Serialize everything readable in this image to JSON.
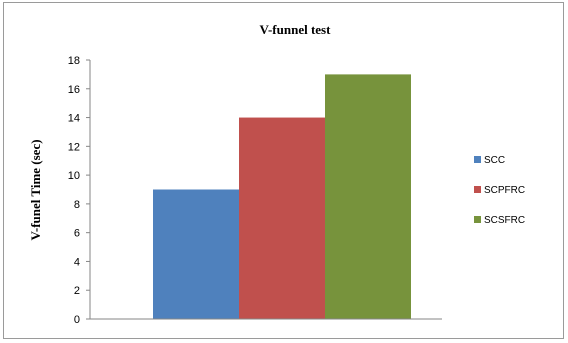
{
  "chart_data": {
    "type": "bar",
    "title": "V-funnel test",
    "xlabel": "",
    "ylabel": "V-funel Time (sec)",
    "ylim": [
      0,
      18
    ],
    "yticks": [
      0,
      2,
      4,
      6,
      8,
      10,
      12,
      14,
      16,
      18
    ],
    "grid": false,
    "legend_position": "right",
    "series": [
      {
        "name": "SCC",
        "values": [
          9
        ],
        "color": "#4f81bd"
      },
      {
        "name": "SCPFRC",
        "values": [
          14
        ],
        "color": "#c0504d"
      },
      {
        "name": "SCSFRC",
        "values": [
          17
        ],
        "color": "#77933c"
      }
    ]
  }
}
